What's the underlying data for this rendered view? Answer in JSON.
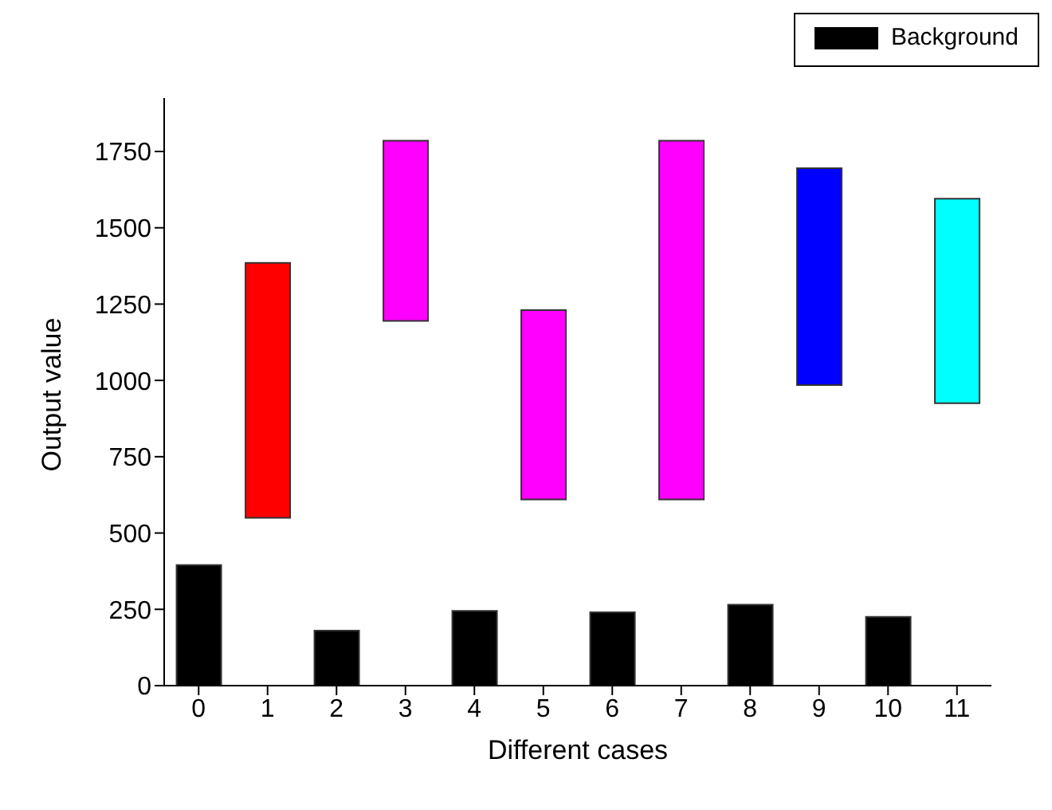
{
  "chart_data": {
    "type": "bar",
    "xlabel": "Different cases",
    "ylabel": "Output value",
    "categories": [
      "0",
      "1",
      "2",
      "3",
      "4",
      "5",
      "6",
      "7",
      "8",
      "9",
      "10",
      "11"
    ],
    "series": [
      {
        "name": "Background",
        "color": "#000000",
        "values": [
          395,
          null,
          180,
          null,
          245,
          null,
          240,
          null,
          265,
          null,
          225,
          null
        ]
      },
      {
        "colors": [
          null,
          "#ff0000",
          null,
          "#ff00ff",
          null,
          "#ff00ff",
          null,
          "#ff00ff",
          null,
          "#0000ff",
          null,
          "#00ffff"
        ],
        "base": [
          null,
          550,
          null,
          1195,
          null,
          610,
          null,
          610,
          null,
          985,
          null,
          925
        ],
        "values": [
          null,
          835,
          null,
          590,
          null,
          620,
          null,
          1175,
          null,
          710,
          null,
          670
        ]
      }
    ],
    "ylim": [
      0,
      1925
    ],
    "yticks": [
      0,
      250,
      500,
      750,
      1000,
      1250,
      1500,
      1750
    ],
    "grid": false,
    "legend": "top right"
  }
}
